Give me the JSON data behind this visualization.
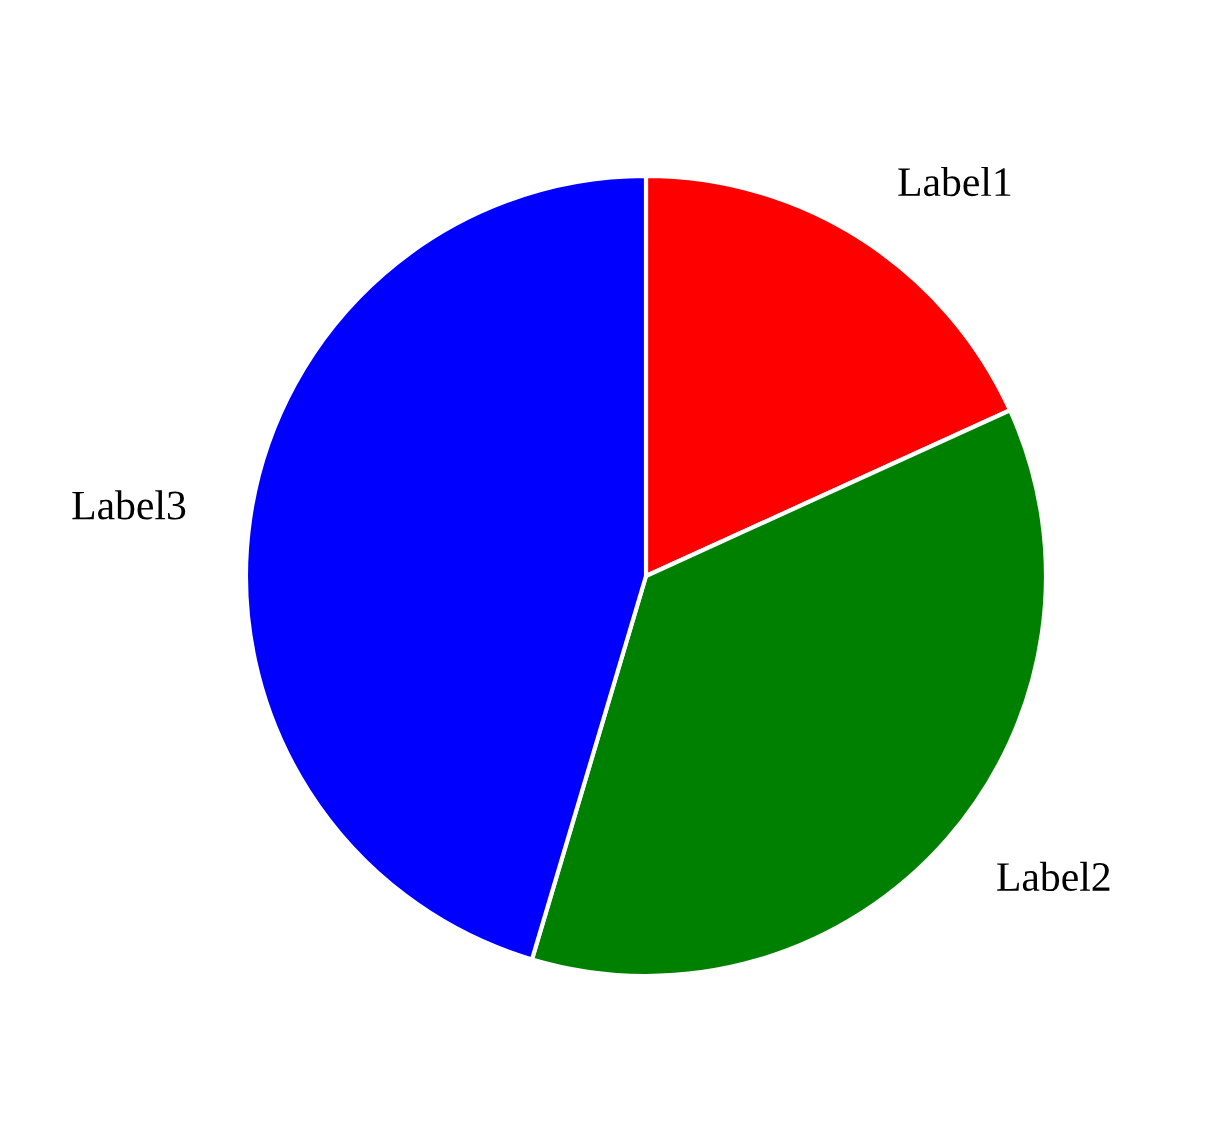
{
  "chart_data": {
    "type": "pie",
    "categories": [
      "Label1",
      "Label2",
      "Label3"
    ],
    "values": [
      18.2,
      36.4,
      45.4
    ],
    "colors": [
      "#ff0000",
      "#008000",
      "#0000ff"
    ]
  }
}
